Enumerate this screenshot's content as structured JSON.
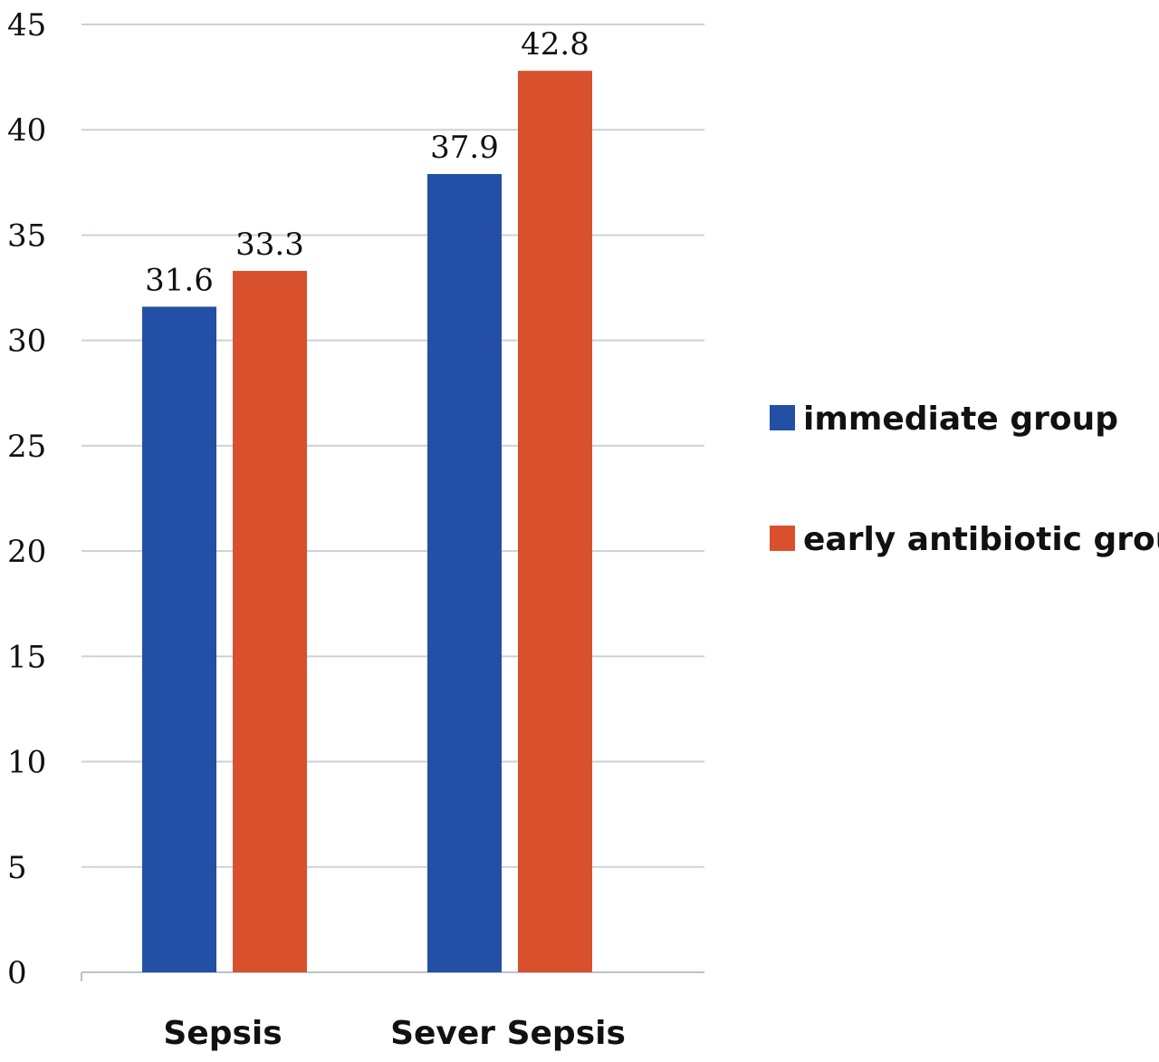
{
  "chart_data": {
    "type": "bar",
    "categories": [
      "Sepsis",
      "Sever Sepsis"
    ],
    "series": [
      {
        "name": "immediate group",
        "values": [
          31.6,
          37.9
        ],
        "color": "#2350a6"
      },
      {
        "name": "early antibiotic group",
        "values": [
          33.3,
          42.8
        ],
        "color": "#d9512c"
      }
    ],
    "data_labels": [
      [
        "31.6",
        "37.9"
      ],
      [
        "33.3",
        "42.8"
      ]
    ],
    "ylim": [
      0,
      45
    ],
    "yticks": [
      0,
      5,
      10,
      15,
      20,
      25,
      30,
      35,
      40,
      45
    ],
    "title": "",
    "xlabel": "",
    "ylabel": "",
    "grid": true,
    "legend_position": "right"
  }
}
